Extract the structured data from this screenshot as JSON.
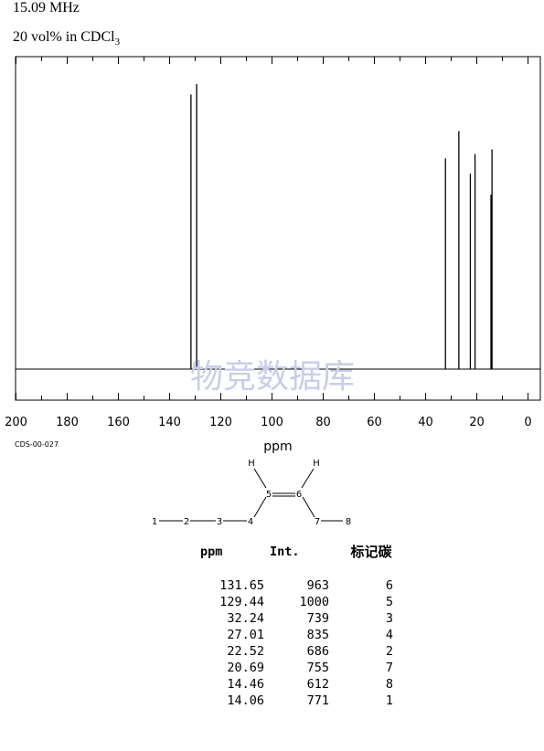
{
  "header": {
    "frequency": "15.09 MHz",
    "solvent_prefix": "20 vol% in CDCl",
    "solvent_sub": "3"
  },
  "watermark": "物竞数据库",
  "sample_code": "CDS-00-027",
  "chart_data": {
    "type": "line",
    "xlabel": "ppm",
    "xlim": [
      200,
      0
    ],
    "x_ticks": [
      200,
      180,
      160,
      140,
      120,
      100,
      80,
      60,
      40,
      20,
      0
    ],
    "peaks": [
      {
        "ppm": 131.65,
        "intensity": 963
      },
      {
        "ppm": 129.44,
        "intensity": 1000
      },
      {
        "ppm": 32.24,
        "intensity": 739
      },
      {
        "ppm": 27.01,
        "intensity": 835
      },
      {
        "ppm": 22.52,
        "intensity": 686
      },
      {
        "ppm": 20.69,
        "intensity": 755
      },
      {
        "ppm": 14.46,
        "intensity": 612
      },
      {
        "ppm": 14.06,
        "intensity": 771
      }
    ]
  },
  "structure": {
    "atoms": [
      "1",
      "2",
      "3",
      "4",
      "5",
      "6",
      "7",
      "8"
    ],
    "h_left": "H",
    "h_right": "H"
  },
  "table": {
    "headers": [
      "ppm",
      "Int.",
      "标记碳"
    ],
    "rows": [
      [
        "131.65",
        "963",
        "6"
      ],
      [
        "129.44",
        "1000",
        "5"
      ],
      [
        "32.24",
        "739",
        "3"
      ],
      [
        "27.01",
        "835",
        "4"
      ],
      [
        "22.52",
        "686",
        "2"
      ],
      [
        "20.69",
        "755",
        "7"
      ],
      [
        "14.46",
        "612",
        "8"
      ],
      [
        "14.06",
        "771",
        "1"
      ]
    ]
  }
}
